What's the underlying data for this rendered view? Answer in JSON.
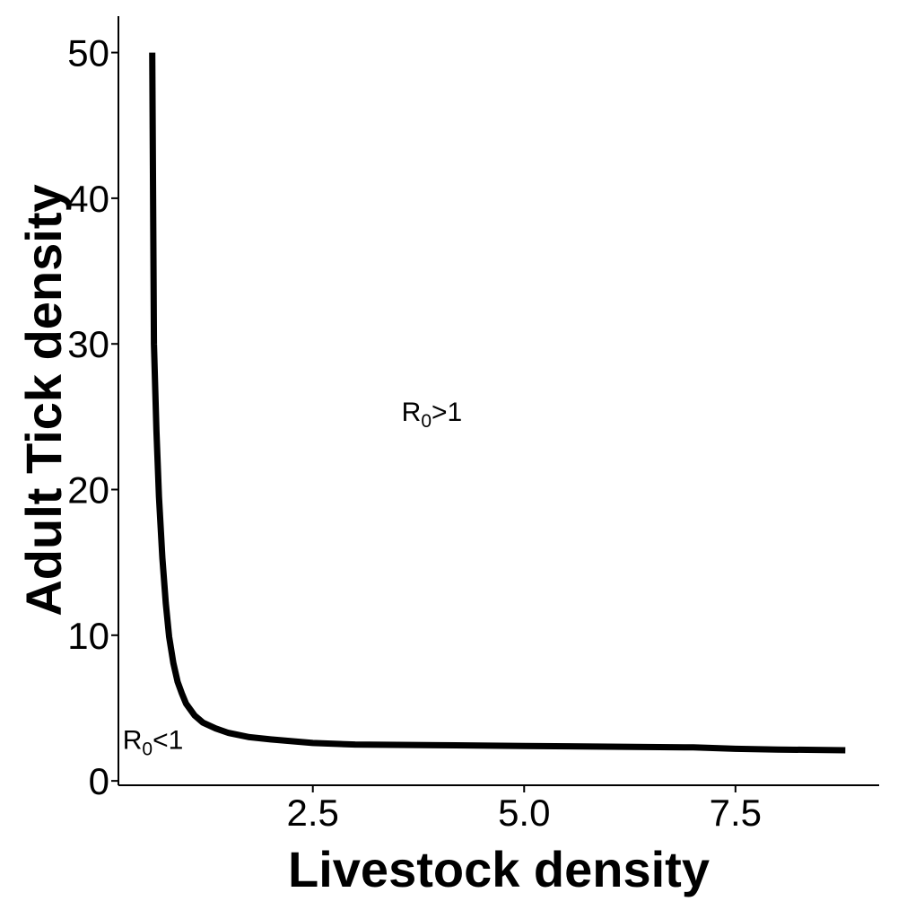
{
  "chart_data": {
    "type": "line",
    "title": "",
    "xlabel": "Livestock density",
    "ylabel": "Adult Tick density",
    "xlim": [
      0.2,
      9.2
    ],
    "ylim": [
      -0.3,
      52.5
    ],
    "x_ticks": [
      {
        "value": 2.5,
        "label": "2.5"
      },
      {
        "value": 5.0,
        "label": "5.0"
      },
      {
        "value": 7.5,
        "label": "7.5"
      }
    ],
    "y_ticks": [
      {
        "value": 0,
        "label": "0"
      },
      {
        "value": 10,
        "label": "10"
      },
      {
        "value": 20,
        "label": "20"
      },
      {
        "value": 30,
        "label": "30"
      },
      {
        "value": 40,
        "label": "40"
      },
      {
        "value": 50,
        "label": "50"
      }
    ],
    "grid": false,
    "legend": "none",
    "line_color": "#000000",
    "series": [
      {
        "x": [
          0.6,
          0.62,
          0.65,
          0.68,
          0.72,
          0.76,
          0.8,
          0.85,
          0.9,
          0.95,
          1.0,
          1.1,
          1.2,
          1.35,
          1.5,
          1.75,
          2.0,
          2.5,
          3.0,
          4.0,
          5.0,
          6.0,
          7.0,
          7.5,
          8.0,
          8.8
        ],
        "y": [
          50,
          30,
          24,
          19.5,
          15.3,
          12.2,
          9.9,
          8.1,
          6.8,
          6.0,
          5.3,
          4.5,
          4.0,
          3.6,
          3.3,
          3.0,
          2.85,
          2.6,
          2.5,
          2.45,
          2.4,
          2.35,
          2.3,
          2.2,
          2.15,
          2.1
        ]
      }
    ],
    "annotations": [
      {
        "base": "R",
        "sub": "0",
        "rest": ">1",
        "x": 3.55,
        "y": 24.7
      },
      {
        "base": "R",
        "sub": "0",
        "rest": "<1",
        "x": 0.25,
        "y": 2.2
      }
    ]
  }
}
